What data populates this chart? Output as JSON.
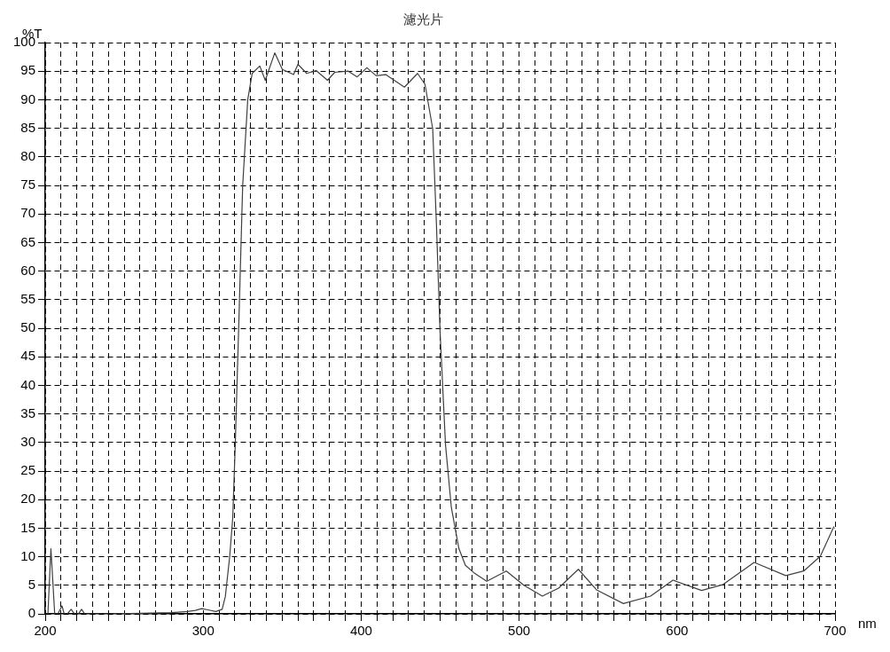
{
  "chart_data": {
    "type": "line",
    "title": "濾光片",
    "xlabel": "nm",
    "ylabel": "%T",
    "x": [
      200,
      201.7,
      203.6,
      206,
      208,
      210.6,
      212,
      214,
      216.4,
      218.5,
      221,
      223,
      225,
      240,
      260,
      280,
      290,
      295,
      299,
      303,
      308,
      312,
      314,
      316.8,
      318.7,
      320.3,
      322.7,
      325,
      328.2,
      331,
      335.8,
      339.3,
      345.3,
      350.1,
      357.2,
      360,
      365.5,
      371.5,
      378.7,
      383.3,
      391.8,
      397.5,
      403.6,
      409.5,
      415.5,
      427.4,
      435.7,
      440.4,
      445.3,
      447.6,
      450,
      453.4,
      457.1,
      461.9,
      466,
      471.4,
      479.5,
      491.9,
      503,
      514.7,
      525,
      537.5,
      549,
      566,
      583.2,
      597.4,
      615.5,
      628.8,
      648.8,
      668.8,
      680.2,
      690.7,
      699.3
    ],
    "series": [
      {
        "color": "#404040",
        "values": [
          0,
          0,
          11.4,
          0,
          0,
          1.4,
          0,
          0,
          0.8,
          0,
          0,
          0.8,
          0,
          0,
          0.1,
          0.2,
          0.4,
          0.6,
          0.9,
          0.7,
          0.4,
          0.8,
          3,
          10.1,
          16.8,
          29.6,
          52.3,
          75,
          90,
          94.6,
          95.9,
          93.4,
          98.2,
          95.3,
          94.4,
          96.2,
          94.6,
          95.1,
          93.4,
          94.8,
          95,
          94,
          95.6,
          94.2,
          94.4,
          92.2,
          94.6,
          92.7,
          84.9,
          68.6,
          49.1,
          29.6,
          18.6,
          11.4,
          8.5,
          7.2,
          5.7,
          7.5,
          5,
          3.1,
          4.5,
          7.8,
          4.2,
          1.8,
          3.1,
          5.9,
          4.1,
          5.1,
          9,
          6.7,
          7.5,
          10.1,
          15.3
        ]
      }
    ],
    "xlim": [
      200,
      700
    ],
    "xticks": [
      200,
      {
        "value": 210,
        "label": null
      },
      {
        "value": 220,
        "label": null
      },
      {
        "value": 230,
        "label": null
      },
      {
        "value": 240,
        "label": null
      },
      {
        "value": 250,
        "label": null
      },
      {
        "value": 260,
        "label": null
      },
      {
        "value": 270,
        "label": null
      },
      {
        "value": 280,
        "label": null
      },
      {
        "value": 290,
        "label": null
      },
      300,
      {
        "value": 310,
        "label": null
      },
      {
        "value": 320,
        "label": null
      },
      {
        "value": 330,
        "label": null
      },
      {
        "value": 340,
        "label": null
      },
      {
        "value": 350,
        "label": null
      },
      {
        "value": 360,
        "label": null
      },
      {
        "value": 370,
        "label": null
      },
      {
        "value": 380,
        "label": null
      },
      {
        "value": 390,
        "label": null
      },
      400,
      {
        "value": 410,
        "label": null
      },
      {
        "value": 420,
        "label": null
      },
      {
        "value": 430,
        "label": null
      },
      {
        "value": 440,
        "label": null
      },
      {
        "value": 450,
        "label": null
      },
      {
        "value": 460,
        "label": null
      },
      {
        "value": 470,
        "label": null
      },
      {
        "value": 480,
        "label": null
      },
      {
        "value": 490,
        "label": null
      },
      500,
      {
        "value": 510,
        "label": null
      },
      {
        "value": 520,
        "label": null
      },
      {
        "value": 530,
        "label": null
      },
      {
        "value": 540,
        "label": null
      },
      {
        "value": 550,
        "label": null
      },
      {
        "value": 560,
        "label": null
      },
      {
        "value": 570,
        "label": null
      },
      {
        "value": 580,
        "label": null
      },
      {
        "value": 590,
        "label": null
      },
      600,
      {
        "value": 610,
        "label": null
      },
      {
        "value": 620,
        "label": null
      },
      {
        "value": 630,
        "label": null
      },
      {
        "value": 640,
        "label": null
      },
      {
        "value": 650,
        "label": null
      },
      {
        "value": 660,
        "label": null
      },
      {
        "value": 670,
        "label": null
      },
      {
        "value": 680,
        "label": null
      },
      {
        "value": 690,
        "label": null
      },
      700
    ],
    "ylim": [
      0,
      100
    ],
    "yticks": [
      0,
      5,
      10,
      15,
      20,
      25,
      30,
      35,
      40,
      45,
      50,
      55,
      60,
      65,
      70,
      75,
      80,
      85,
      90,
      95,
      100
    ],
    "grid": true,
    "legend": false,
    "marker": "none",
    "line_style": "solid"
  }
}
